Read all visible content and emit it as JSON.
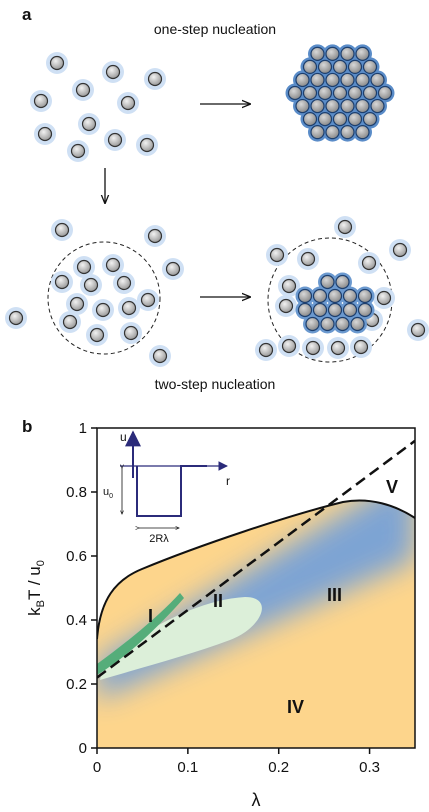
{
  "panel_a": {
    "label": "a",
    "top_caption": "one-step nucleation",
    "bottom_caption": "two-step nucleation"
  },
  "panel_b": {
    "label": "b",
    "y_label_parts": [
      "k",
      "B",
      "T / u",
      "0"
    ],
    "x_label": "λ",
    "xlim": [
      0,
      0.35
    ],
    "ylim": [
      0,
      1
    ],
    "xticks": [
      0,
      0.1,
      0.2,
      0.3
    ],
    "yticks": [
      0,
      0.2,
      0.4,
      0.6,
      0.8,
      1
    ],
    "regions": [
      "I",
      "II",
      "III",
      "IV",
      "V"
    ],
    "inset": {
      "y_label": "u",
      "x_label": "r",
      "depth_label_parts": [
        "u",
        "0"
      ],
      "width_label": "2Rλ"
    }
  }
}
